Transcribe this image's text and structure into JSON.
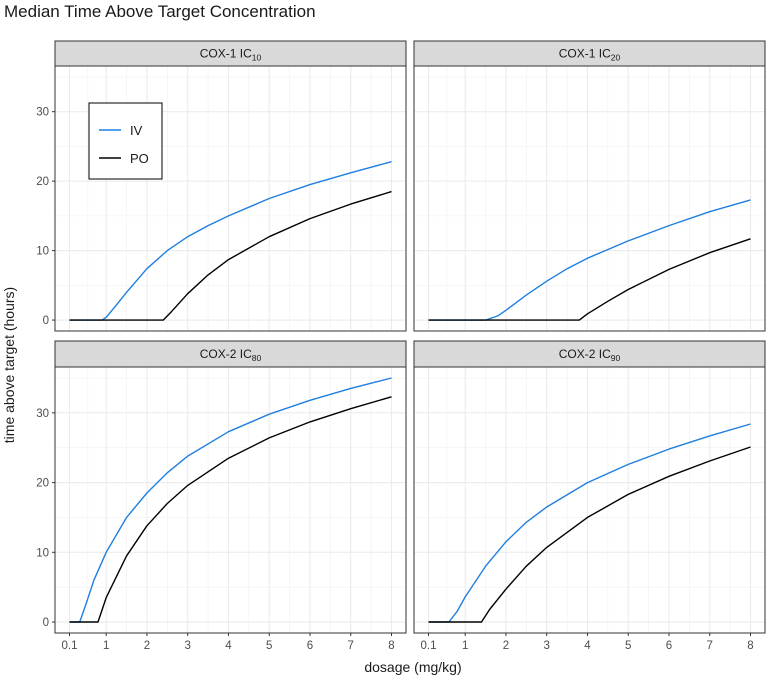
{
  "title": "Median Time Above Target Concentration",
  "chart_data": {
    "type": "line",
    "facets": [
      {
        "label_main": "COX-1 IC",
        "label_sub": "10"
      },
      {
        "label_main": "COX-1 IC",
        "label_sub": "20"
      },
      {
        "label_main": "COX-2 IC",
        "label_sub": "80"
      },
      {
        "label_main": "COX-2 IC",
        "label_sub": "90"
      }
    ],
    "xlabel": "dosage (mg/kg)",
    "ylabel": "time above target (hours)",
    "xlim": [
      0.1,
      8
    ],
    "ylim": [
      0,
      35
    ],
    "x_ticks": [
      "0.1",
      "1",
      "2",
      "3",
      "4",
      "5",
      "6",
      "7",
      "8"
    ],
    "x_tick_values": [
      0.1,
      1,
      2,
      3,
      4,
      5,
      6,
      7,
      8
    ],
    "y_ticks": [
      "0",
      "10",
      "20",
      "30"
    ],
    "y_tick_values": [
      0,
      10,
      20,
      30
    ],
    "grid": true,
    "legend_position": "top-left (inside first panel)",
    "series_names": [
      "IV",
      "PO"
    ],
    "series_colors": {
      "IV": "#1f7fe0",
      "PO": "#000000"
    },
    "panels": [
      {
        "series": [
          {
            "name": "IV",
            "x": [
              0.1,
              0.5,
              0.9,
              1.0,
              1.2,
              1.5,
              2.0,
              2.5,
              3.0,
              3.5,
              4.0,
              5.0,
              6.0,
              7.0,
              8.0
            ],
            "y": [
              0,
              0,
              0,
              0.4,
              1.8,
              4.0,
              7.4,
              10.0,
              12.0,
              13.6,
              15.0,
              17.5,
              19.5,
              21.2,
              22.8
            ]
          },
          {
            "name": "PO",
            "x": [
              0.1,
              1.0,
              2.0,
              2.4,
              2.6,
              3.0,
              3.5,
              4.0,
              5.0,
              6.0,
              7.0,
              8.0
            ],
            "y": [
              0,
              0,
              0,
              0,
              1.2,
              3.8,
              6.5,
              8.7,
              12.0,
              14.6,
              16.7,
              18.5
            ]
          }
        ]
      },
      {
        "series": [
          {
            "name": "IV",
            "x": [
              0.1,
              1.0,
              1.5,
              1.8,
              2.0,
              2.5,
              3.0,
              3.5,
              4.0,
              5.0,
              6.0,
              7.0,
              8.0
            ],
            "y": [
              0,
              0,
              0,
              0.6,
              1.4,
              3.6,
              5.6,
              7.4,
              8.9,
              11.4,
              13.6,
              15.6,
              17.3
            ]
          },
          {
            "name": "PO",
            "x": [
              0.1,
              2.0,
              3.0,
              3.8,
              4.0,
              4.5,
              5.0,
              6.0,
              7.0,
              8.0
            ],
            "y": [
              0,
              0,
              0,
              0,
              0.9,
              2.7,
              4.4,
              7.3,
              9.7,
              11.7
            ]
          }
        ]
      },
      {
        "series": [
          {
            "name": "IV",
            "x": [
              0.1,
              0.35,
              0.5,
              0.7,
              1.0,
              1.5,
              2.0,
              2.5,
              3.0,
              4.0,
              5.0,
              6.0,
              7.0,
              8.0
            ],
            "y": [
              0,
              0,
              2.5,
              6.0,
              10.0,
              15.0,
              18.5,
              21.4,
              23.8,
              27.3,
              29.8,
              31.8,
              33.5,
              35.0
            ]
          },
          {
            "name": "PO",
            "x": [
              0.1,
              0.6,
              0.8,
              1.0,
              1.5,
              2.0,
              2.5,
              3.0,
              4.0,
              5.0,
              6.0,
              7.0,
              8.0
            ],
            "y": [
              0,
              0,
              0,
              3.5,
              9.5,
              13.8,
              17.0,
              19.6,
              23.5,
              26.4,
              28.7,
              30.6,
              32.3
            ]
          }
        ]
      },
      {
        "series": [
          {
            "name": "IV",
            "x": [
              0.1,
              0.6,
              0.8,
              1.0,
              1.5,
              2.0,
              2.5,
              3.0,
              4.0,
              5.0,
              6.0,
              7.0,
              8.0
            ],
            "y": [
              0,
              0,
              1.5,
              3.6,
              8.0,
              11.5,
              14.3,
              16.5,
              20.0,
              22.6,
              24.8,
              26.7,
              28.4
            ]
          },
          {
            "name": "PO",
            "x": [
              0.1,
              1.0,
              1.4,
              1.6,
              2.0,
              2.5,
              3.0,
              4.0,
              5.0,
              6.0,
              7.0,
              8.0
            ],
            "y": [
              0,
              0,
              0,
              1.8,
              4.7,
              8.0,
              10.7,
              15.0,
              18.3,
              20.9,
              23.1,
              25.1
            ]
          }
        ]
      }
    ]
  }
}
